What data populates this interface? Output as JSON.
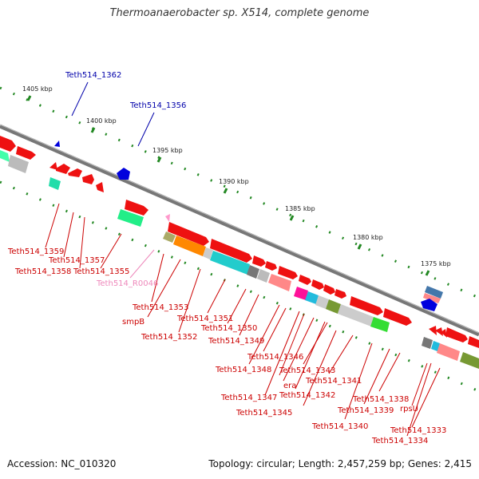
{
  "title": "Thermoanaerobacter sp. X514, complete genome",
  "footer": {
    "accession": "Accession: NC_010320",
    "summary": "Topology: circular; Length: 2,457,259 bp; Genes: 2,415"
  },
  "scale_labels": [
    "1405 kbp",
    "1400 kbp",
    "1395 kbp",
    "1390 kbp",
    "1385 kbp",
    "1380 kbp",
    "1375 kbp"
  ],
  "gene_labels": [
    "Teth514_1362",
    "Teth514_1356",
    "Teth514_1359",
    "Teth514_1357",
    "Teth514_1358",
    "Teth514_1355",
    "Teth514_R0046",
    "Teth514_1353",
    "smpB",
    "Teth514_1352",
    "Teth514_1351",
    "Teth514_1350",
    "Teth514_1349",
    "Teth514_1346",
    "Teth514_1348",
    "Teth514_1343",
    "era",
    "Teth514_1342",
    "Teth514_1347",
    "Teth514_1345",
    "Teth514_1341",
    "Teth514_1340",
    "Teth514_1338",
    "Teth514_1339",
    "rpsU",
    "Teth514_1333",
    "Teth514_1334"
  ],
  "colors": {
    "cds": "#ee1111",
    "trna": "#ff99cc",
    "misc": "#0000dd",
    "backbone": "#888888",
    "tick": "#228822"
  }
}
